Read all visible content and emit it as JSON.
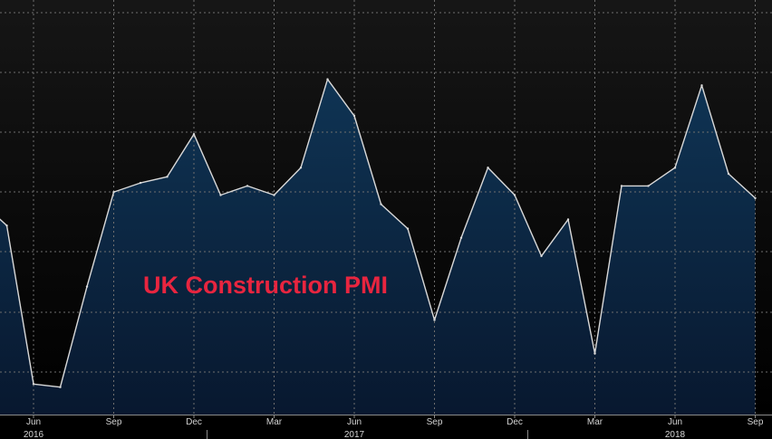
{
  "chart_data": {
    "type": "area",
    "title": "UK Construction PMI",
    "x": [
      "2016-04",
      "2016-05",
      "2016-06",
      "2016-07",
      "2016-08",
      "2016-09",
      "2016-10",
      "2016-11",
      "2016-12",
      "2017-01",
      "2017-02",
      "2017-03",
      "2017-04",
      "2017-05",
      "2017-06",
      "2017-07",
      "2017-08",
      "2017-09",
      "2017-10",
      "2017-11",
      "2017-12",
      "2018-01",
      "2018-02",
      "2018-03",
      "2018-04",
      "2018-05",
      "2018-06",
      "2018-07",
      "2018-08",
      "2018-09"
    ],
    "values": [
      52.0,
      51.2,
      46.0,
      45.9,
      49.2,
      52.3,
      52.6,
      52.8,
      54.2,
      52.2,
      52.5,
      52.2,
      53.1,
      56.0,
      54.8,
      51.9,
      51.1,
      48.1,
      50.8,
      53.1,
      52.2,
      50.2,
      51.4,
      47.0,
      52.5,
      52.5,
      53.1,
      55.8,
      52.9,
      52.1
    ],
    "ylim": [
      45.0,
      58.6
    ],
    "x_tick_labels": [
      "Jun",
      "Sep",
      "Dec",
      "Mar",
      "Jun",
      "Sep",
      "Dec",
      "Mar",
      "Jun",
      "Sep"
    ],
    "x_tick_dates": [
      "2016-06",
      "2016-09",
      "2016-12",
      "2017-03",
      "2017-06",
      "2017-09",
      "2017-12",
      "2018-03",
      "2018-06",
      "2018-09"
    ],
    "year_labels": [
      "2016",
      "2017",
      "2018"
    ],
    "year_label_dates": [
      "2016-06",
      "2017-06",
      "2018-06"
    ],
    "grid": true,
    "legend": "none"
  },
  "colors": {
    "background": "#000000",
    "plot_top": "#151515",
    "line": "#d9d9d9",
    "area_top": "#0f3454",
    "area_bottom": "#08182f",
    "grid": "#6e6e6e",
    "title": "#e8253f"
  }
}
